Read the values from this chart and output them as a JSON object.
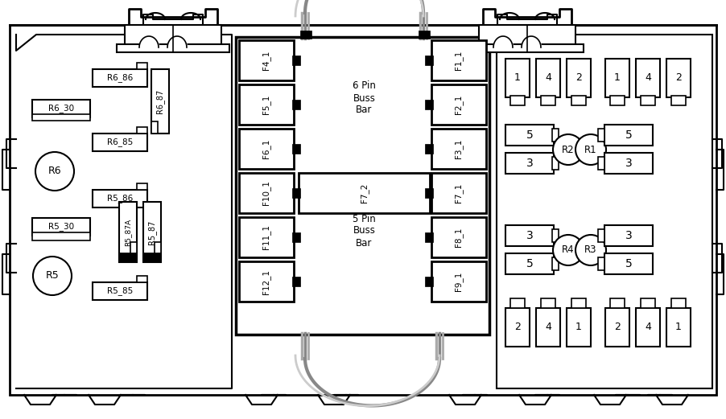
{
  "bg_color": "#ffffff",
  "line_color": "#000000",
  "fig_width": 9.03,
  "fig_height": 5.21,
  "fuse_labels_left": [
    "F4_1",
    "F5_1",
    "F6_1",
    "F10_1",
    "F11_1",
    "F12_1"
  ],
  "fuse_labels_right": [
    "F1_1",
    "F2_1",
    "F3_1",
    "F7_1",
    "F8_1",
    "F9_1"
  ],
  "fuse_label_center": "F7_2",
  "buss_bar_top": "6 Pin\nBuss\nBar",
  "buss_bar_bottom": "5 Pin\nBuss\nBar",
  "relay_circles_left": [
    [
      "R6",
      68,
      310
    ],
    [
      "R5",
      68,
      175
    ]
  ],
  "relay_boxes_left": [
    [
      "R6_86",
      115,
      415,
      65,
      20,
      0
    ],
    [
      "R6_30",
      40,
      378,
      68,
      20,
      0
    ],
    [
      "R6_87",
      195,
      355,
      20,
      72,
      90
    ],
    [
      "R6_85",
      120,
      340,
      65,
      20,
      0
    ],
    [
      "R5_86",
      120,
      268,
      65,
      20,
      0
    ],
    [
      "R5_30",
      40,
      232,
      68,
      20,
      0
    ],
    [
      "R5_87A",
      155,
      205,
      20,
      72,
      90
    ],
    [
      "R5_87",
      183,
      205,
      20,
      65,
      90
    ],
    [
      "R5_85",
      120,
      148,
      65,
      20,
      0
    ]
  ],
  "relay_circles_right": [
    [
      "R2",
      695,
      320
    ],
    [
      "R1",
      724,
      320
    ],
    [
      "R4",
      695,
      195
    ],
    [
      "R3",
      724,
      195
    ]
  ],
  "conn_top_left": [
    [
      "1",
      633,
      423
    ],
    [
      "4",
      660,
      423
    ],
    [
      "2",
      687,
      423
    ]
  ],
  "conn_top_right": [
    [
      "1",
      740,
      423
    ],
    [
      "4",
      767,
      423
    ],
    [
      "2",
      794,
      423
    ]
  ],
  "conn_bot_left": [
    [
      "2",
      633,
      100
    ],
    [
      "4",
      660,
      100
    ],
    [
      "1",
      687,
      100
    ]
  ],
  "conn_bot_right": [
    [
      "2",
      740,
      100
    ],
    [
      "4",
      767,
      100
    ],
    [
      "1",
      794,
      100
    ]
  ],
  "relay_r2_pins_left": [
    [
      "5",
      633,
      330
    ],
    [
      "3",
      633,
      295
    ]
  ],
  "relay_r1_pins_right": [
    [
      "5",
      748,
      330
    ],
    [
      "3",
      748,
      295
    ]
  ],
  "relay_r4_pins_left": [
    [
      "3",
      633,
      210
    ],
    [
      "5",
      633,
      175
    ]
  ],
  "relay_r3_pins_right": [
    [
      "3",
      748,
      210
    ],
    [
      "5",
      748,
      175
    ]
  ]
}
